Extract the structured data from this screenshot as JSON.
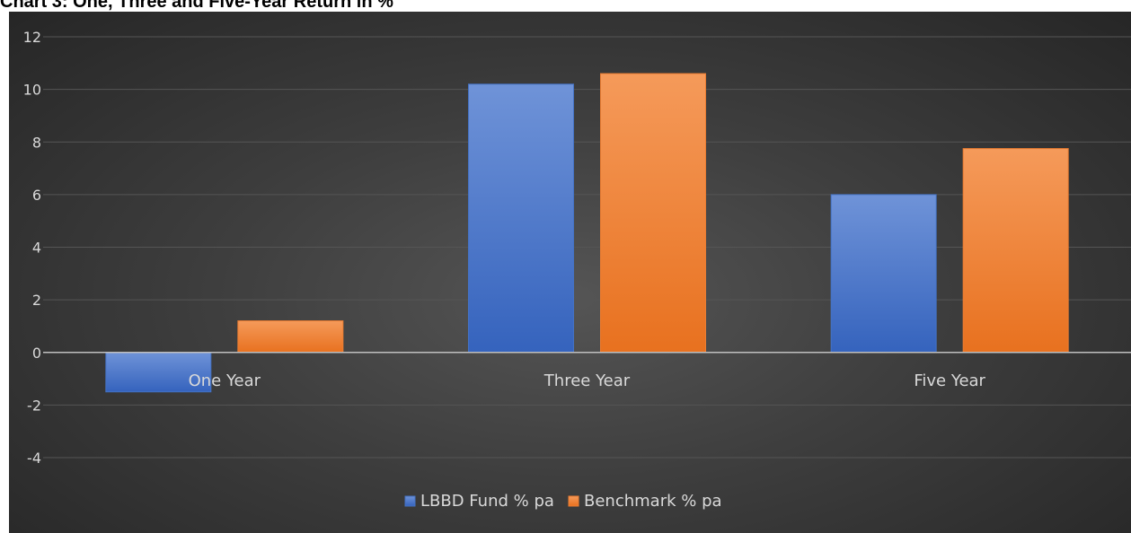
{
  "chart_title": "Chart 3: One, Three and Five-Year Return in %",
  "chart_data": {
    "type": "bar",
    "title": "Chart 3: One, Three and Five-Year Return in %",
    "categories": [
      "One Year",
      "Three Year",
      "Five Year"
    ],
    "series": [
      {
        "name": "LBBD Fund % pa",
        "values": [
          -1.5,
          10.2,
          6.0
        ],
        "color": "#4472C4"
      },
      {
        "name": "Benchmark % pa",
        "values": [
          1.2,
          10.6,
          7.75
        ],
        "color": "#ED7D31"
      }
    ],
    "ylim": [
      -4,
      12
    ],
    "yticks": [
      "12",
      "10",
      "8",
      "6",
      "4",
      "2",
      "0",
      "-2",
      "-4"
    ],
    "xlabel": "",
    "ylabel": "",
    "grid": true,
    "legend_position": "bottom",
    "background": "#3a3a3a",
    "text_color": "#d9d9d9",
    "grid_color": "#555555",
    "axis_color": "#bfbfbf"
  }
}
